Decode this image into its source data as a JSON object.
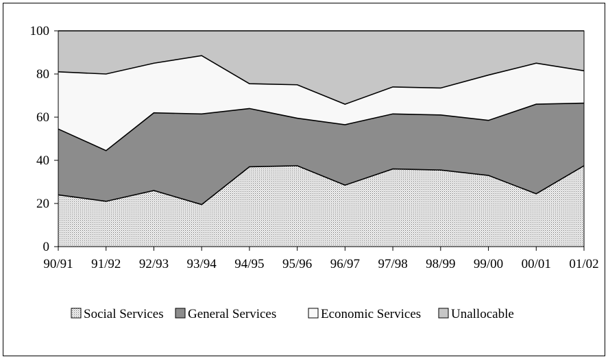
{
  "chart_data": {
    "type": "area",
    "stacked": true,
    "categories": [
      "90/91",
      "91/92",
      "92/93",
      "93/94",
      "94/95",
      "95/96",
      "96/97",
      "97/98",
      "98/99",
      "99/00",
      "00/01",
      "01/02"
    ],
    "series": [
      {
        "name": "Social Services",
        "values": [
          24,
          21,
          26,
          19.5,
          37,
          37.5,
          28.5,
          36,
          35.5,
          33,
          24.5,
          37.5
        ],
        "fill": "#ececec",
        "pattern": "dots"
      },
      {
        "name": "General Services",
        "values": [
          30.5,
          23.5,
          36,
          42,
          27,
          22,
          28,
          25.5,
          25.5,
          25.5,
          41.5,
          29
        ],
        "fill": "#8c8c8c",
        "pattern": "none"
      },
      {
        "name": "Economic Services",
        "values": [
          26.5,
          35.5,
          23,
          27,
          11.5,
          15.5,
          9.5,
          12.5,
          12.5,
          21,
          19,
          15
        ],
        "fill": "#f8f8f8",
        "pattern": "none"
      },
      {
        "name": "Unallocable",
        "values": [
          19,
          20,
          15,
          11.5,
          24.5,
          25,
          34,
          26,
          26.5,
          20.5,
          15,
          18.5
        ],
        "fill": "#c6c6c6",
        "pattern": "none"
      }
    ],
    "y_ticks": [
      "0",
      "20",
      "40",
      "60",
      "80",
      "100"
    ],
    "ylim": [
      0,
      100
    ],
    "grid": false,
    "legend_position": "bottom"
  }
}
